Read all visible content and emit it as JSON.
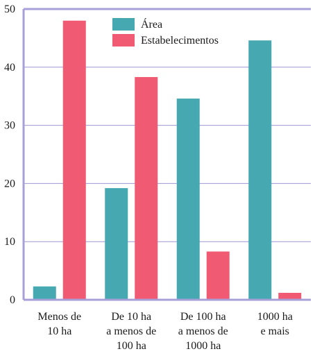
{
  "chart_data": {
    "type": "bar",
    "categories": [
      [
        "Menos de",
        "10 ha"
      ],
      [
        "De 10 ha",
        "a menos de",
        "100 ha"
      ],
      [
        "De 100 ha",
        "a menos de",
        "1000 ha"
      ],
      [
        "1000 ha",
        "e mais"
      ]
    ],
    "series": [
      {
        "name": "Área",
        "color": "#46a8b0",
        "values": [
          2.3,
          19.2,
          34.6,
          44.6
        ]
      },
      {
        "name": "Estabelecimentos",
        "color": "#f05a72",
        "values": [
          48.0,
          38.3,
          8.3,
          1.2
        ]
      }
    ],
    "ylim": [
      0,
      50
    ],
    "yticks": [
      0,
      10,
      20,
      30,
      40,
      50
    ],
    "grid": true,
    "legend": "top-left",
    "frame_color": "#a79fd8",
    "grid_color": "#9e96d3"
  }
}
